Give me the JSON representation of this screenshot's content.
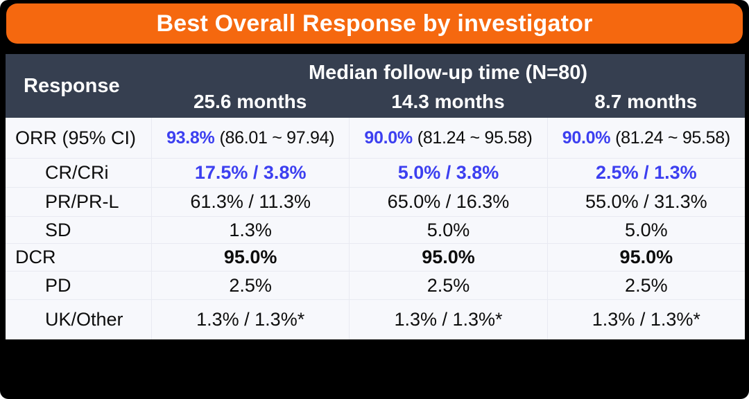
{
  "colors": {
    "canvas_bg": "#000000",
    "banner_orange": "#F5680F",
    "header_bg": "#363F50",
    "header_text": "#FFFFFF",
    "body_bg": "#F7F8FC",
    "grid_line": "#E8EAF2",
    "accent_blue": "#3C3FF0",
    "text_dark": "#0D0D0D"
  },
  "chart_data": {
    "type": "table",
    "title": "Best Overall Response by investigator",
    "header": {
      "row_label": "Response",
      "group_label": "Median follow-up time (N=80)",
      "columns": [
        "25.6 months",
        "14.3 months",
        "8.7 months"
      ]
    },
    "rows": [
      {
        "label": "ORR (95% CI)",
        "indent": false,
        "style": "orr",
        "cells": [
          {
            "pct": "93.8%",
            "ci": "(86.01 ~ 97.94)"
          },
          {
            "pct": "90.0%",
            "ci": "(81.24 ~ 95.58)"
          },
          {
            "pct": "90.0%",
            "ci": "(81.24 ~ 95.58)"
          }
        ]
      },
      {
        "label": "CR/CRi",
        "indent": true,
        "style": "blue-bold",
        "cells": [
          "17.5% / 3.8%",
          "5.0% / 3.8%",
          "2.5% / 1.3%"
        ]
      },
      {
        "label": "PR/PR-L",
        "indent": true,
        "style": "normal",
        "cells": [
          "61.3% / 11.3%",
          "65.0% / 16.3%",
          "55.0% / 31.3%"
        ]
      },
      {
        "label": "SD",
        "indent": true,
        "style": "normal",
        "cells": [
          "1.3%",
          "5.0%",
          "5.0%"
        ]
      },
      {
        "label": "DCR",
        "indent": false,
        "style": "bold",
        "cells": [
          "95.0%",
          "95.0%",
          "95.0%"
        ]
      },
      {
        "label": "PD",
        "indent": true,
        "style": "normal",
        "cells": [
          "2.5%",
          "2.5%",
          "2.5%"
        ]
      },
      {
        "label": "UK/Other",
        "indent": true,
        "style": "normal",
        "cells": [
          "1.3% / 1.3%*",
          "1.3% / 1.3%*",
          "1.3% / 1.3%*"
        ]
      }
    ]
  }
}
